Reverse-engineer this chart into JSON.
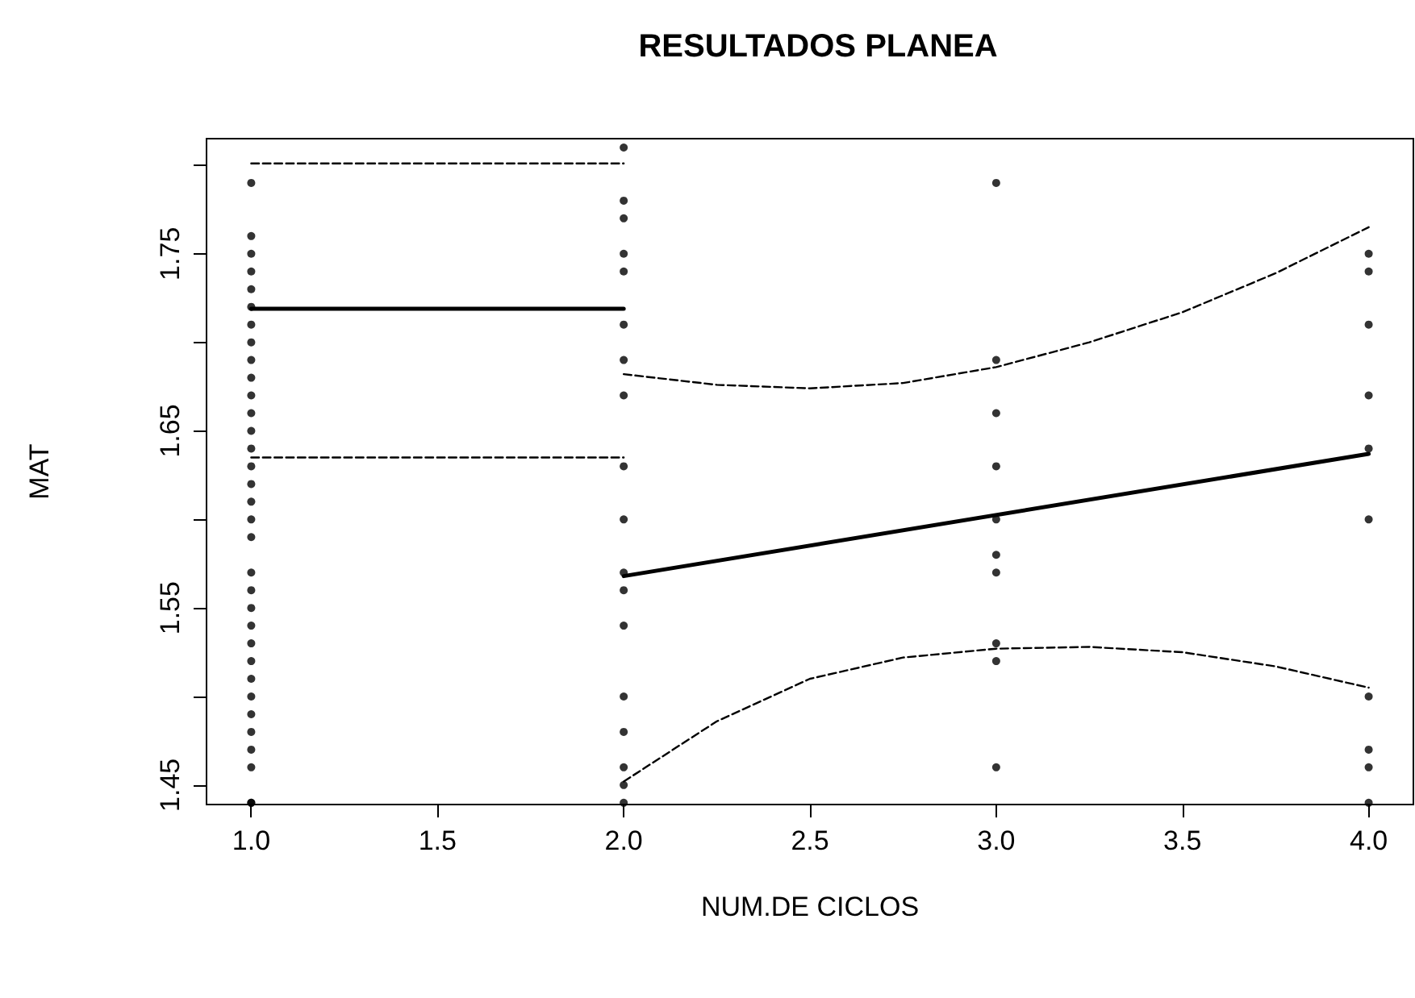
{
  "chart_data": {
    "type": "scatter",
    "title": "RESULTADOS PLANEA",
    "xlabel": "NUM.DE CICLOS",
    "ylabel": "MAT",
    "xlim": [
      0.88,
      4.12
    ],
    "ylim": [
      1.439,
      1.815
    ],
    "xticks": [
      {
        "value": 1,
        "label": "1.0"
      },
      {
        "value": 1.5,
        "label": "1.5"
      },
      {
        "value": 2,
        "label": "2.0"
      },
      {
        "value": 2.5,
        "label": "2.5"
      },
      {
        "value": 3,
        "label": "3.0"
      },
      {
        "value": 3.5,
        "label": "3.5"
      },
      {
        "value": 4,
        "label": "4.0"
      }
    ],
    "yticks": [
      1.45,
      {
        "value": 1.5,
        "label": null
      },
      1.55,
      {
        "value": 1.6,
        "label": null
      },
      1.65,
      {
        "value": 1.7,
        "label": null
      },
      1.75,
      {
        "value": 1.8,
        "label": null
      }
    ],
    "grid": false,
    "marker": "circle",
    "series": [
      {
        "color": "#000000",
        "x": [
          1,
          1,
          1,
          1,
          1,
          1,
          1,
          1,
          1,
          1,
          1,
          1,
          1,
          1,
          1,
          1,
          1,
          1,
          1,
          1,
          1,
          1,
          1,
          1,
          1,
          1,
          1,
          1,
          1,
          1,
          1,
          1,
          1,
          2,
          2,
          2,
          2,
          2,
          2,
          2,
          2,
          2,
          2,
          2,
          2,
          2,
          2,
          2,
          2,
          2,
          2,
          3,
          3,
          3,
          3,
          3,
          3,
          3,
          3,
          3,
          3,
          4,
          4,
          4,
          4,
          4,
          4,
          4,
          4,
          4,
          4
        ],
        "values": [
          1.79,
          1.76,
          1.75,
          1.74,
          1.73,
          1.72,
          1.71,
          1.7,
          1.69,
          1.68,
          1.67,
          1.66,
          1.65,
          1.64,
          1.63,
          1.62,
          1.61,
          1.6,
          1.59,
          1.57,
          1.56,
          1.55,
          1.54,
          1.53,
          1.52,
          1.51,
          1.5,
          1.49,
          1.48,
          1.47,
          1.46,
          1.44,
          1.44,
          1.81,
          1.78,
          1.77,
          1.75,
          1.74,
          1.71,
          1.69,
          1.67,
          1.63,
          1.6,
          1.57,
          1.56,
          1.54,
          1.5,
          1.48,
          1.46,
          1.45,
          1.44,
          1.79,
          1.69,
          1.66,
          1.63,
          1.6,
          1.58,
          1.57,
          1.53,
          1.52,
          1.46,
          1.75,
          1.74,
          1.71,
          1.67,
          1.64,
          1.6,
          1.5,
          1.47,
          1.46,
          1.44
        ]
      },
      {
        "type": "line",
        "color": "#000000",
        "line_style": "solid",
        "marker": "none",
        "x": [
          1,
          2
        ],
        "values": [
          1.719,
          1.719
        ]
      },
      {
        "type": "line",
        "color": "#000000",
        "line_style": "dashed",
        "marker": "none",
        "x": [
          1,
          2
        ],
        "values": [
          1.801,
          1.801
        ]
      },
      {
        "type": "line",
        "color": "#000000",
        "line_style": "dashed",
        "marker": "none",
        "x": [
          1,
          2
        ],
        "values": [
          1.635,
          1.635
        ]
      },
      {
        "type": "line",
        "color": "#000000",
        "line_style": "solid",
        "marker": "none",
        "x": [
          2,
          4
        ],
        "values": [
          1.568,
          1.637
        ]
      },
      {
        "type": "line",
        "color": "#000000",
        "line_style": "dashed",
        "marker": "none",
        "x": [
          2,
          2.25,
          2.5,
          2.75,
          3,
          3.25,
          3.5,
          3.75,
          4
        ],
        "values": [
          1.682,
          1.676,
          1.674,
          1.677,
          1.686,
          1.7,
          1.717,
          1.739,
          1.765
        ]
      },
      {
        "type": "line",
        "color": "#000000",
        "line_style": "dashed",
        "marker": "none",
        "x": [
          2,
          2.25,
          2.5,
          2.75,
          3,
          3.25,
          3.5,
          3.75,
          4
        ],
        "values": [
          1.452,
          1.486,
          1.51,
          1.522,
          1.527,
          1.528,
          1.525,
          1.517,
          1.505
        ]
      }
    ]
  }
}
